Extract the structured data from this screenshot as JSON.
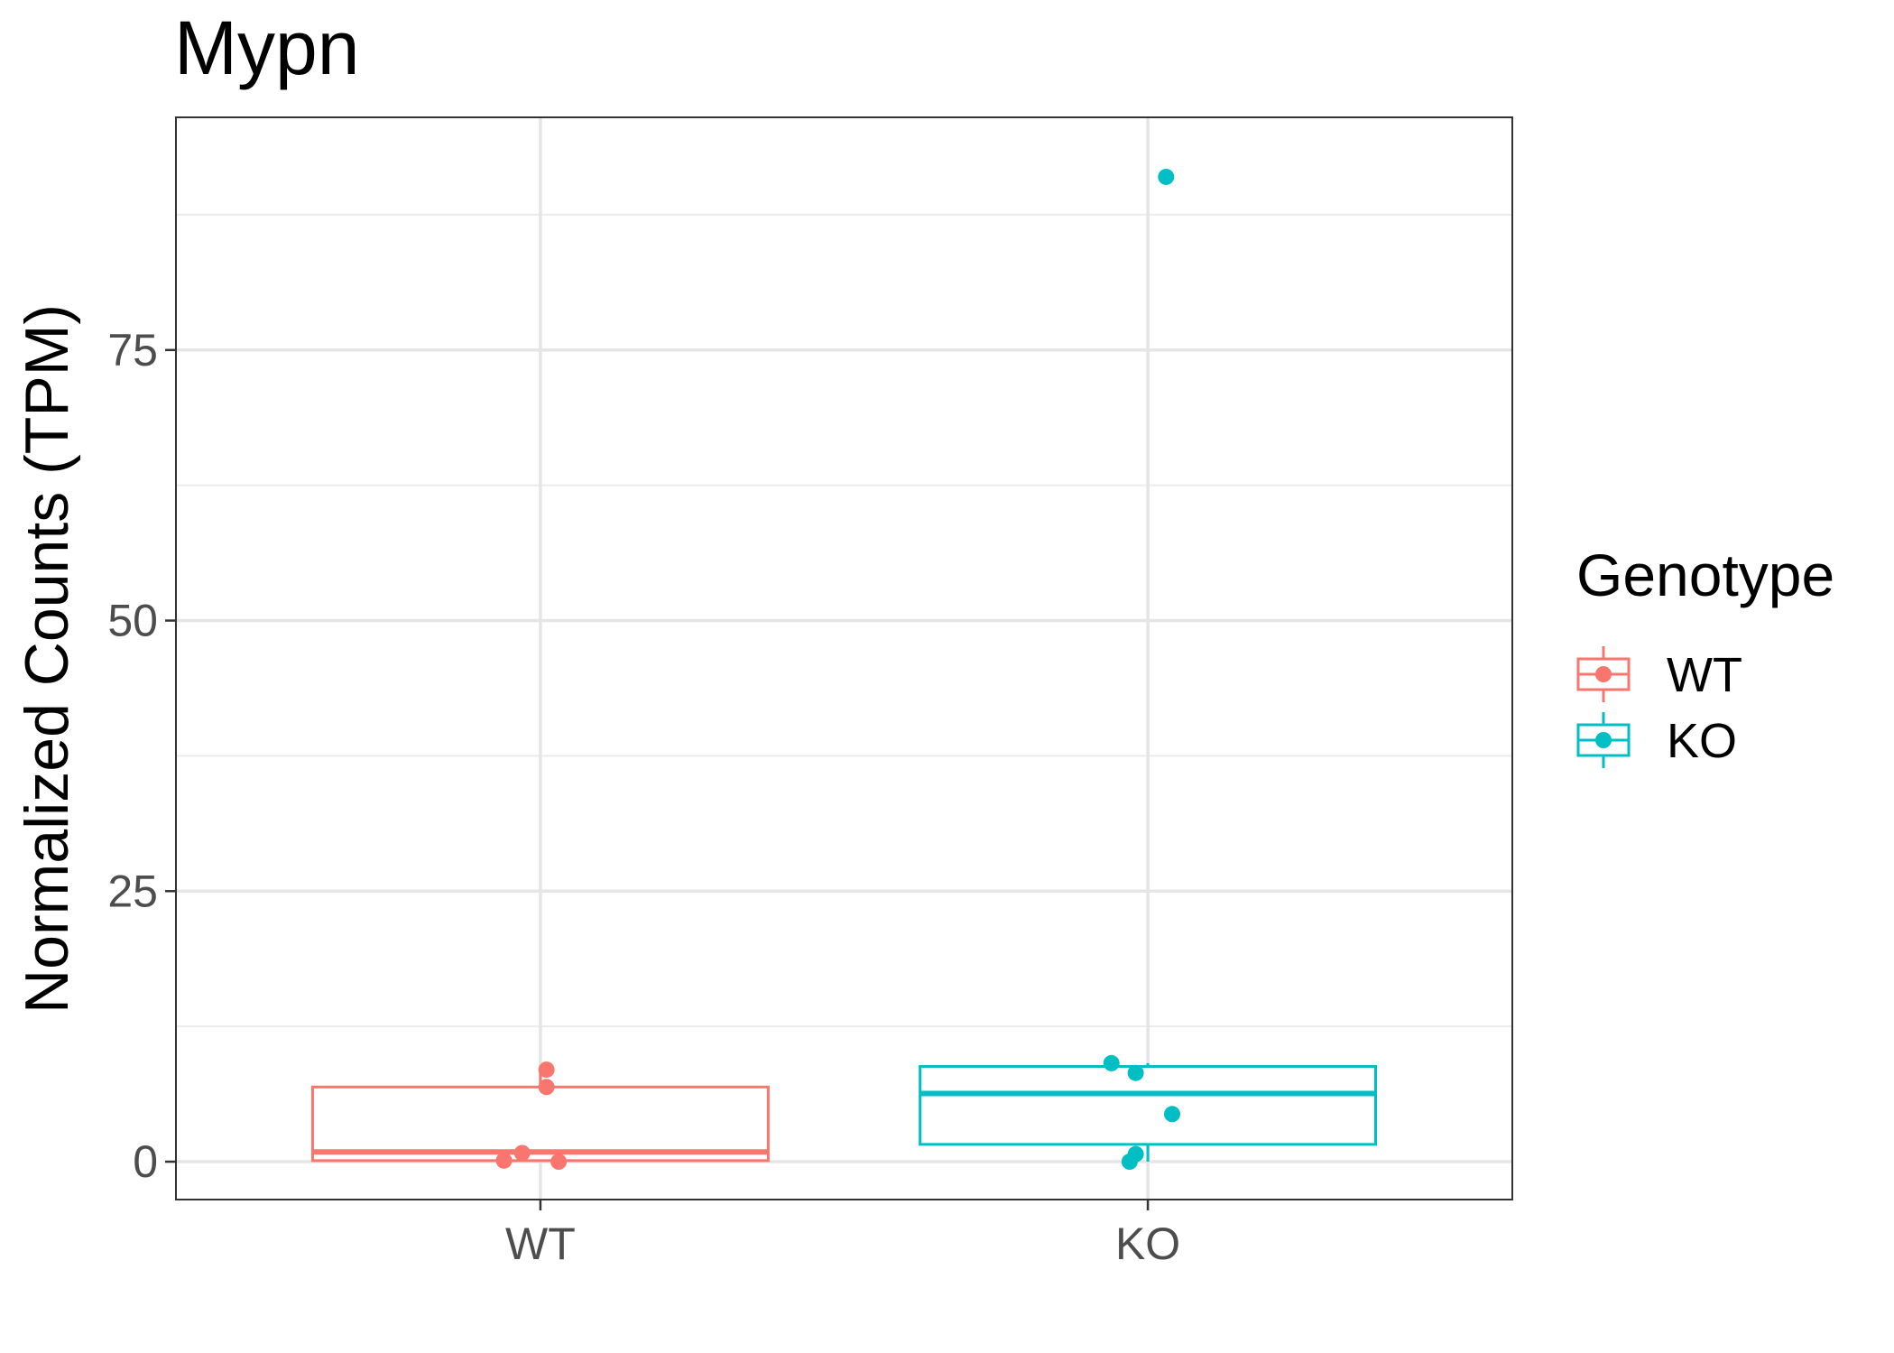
{
  "chart_data": {
    "type": "box",
    "title": "Mypn",
    "xlabel": "",
    "ylabel": "Normalized Counts (TPM)",
    "ylim": [
      -3.5,
      96.5
    ],
    "yticks": [
      0,
      25,
      50,
      75
    ],
    "ytick_labels": [
      "0",
      "25",
      "50",
      "75"
    ],
    "categories": [
      "WT",
      "KO"
    ],
    "grid": true,
    "legend": {
      "title": "Genotype",
      "position": "right",
      "entries": [
        "WT",
        "KO"
      ]
    },
    "colors": {
      "WT": "#F8766D",
      "KO": "#00BFC4"
    },
    "series": [
      {
        "name": "WT",
        "box": {
          "lower_whisker": 0.0,
          "q1": 0.1,
          "median": 0.9,
          "q3": 6.9,
          "upper_whisker": 8.5
        },
        "points": [
          {
            "x": 0.94,
            "y": 0.1
          },
          {
            "x": 0.97,
            "y": 0.8
          },
          {
            "x": 1.01,
            "y": 8.5
          },
          {
            "x": 1.01,
            "y": 6.9
          },
          {
            "x": 1.03,
            "y": 0.0
          }
        ]
      },
      {
        "name": "KO",
        "box": {
          "lower_whisker": 0.0,
          "q1": 1.6,
          "median": 6.3,
          "q3": 8.8,
          "upper_whisker": 9.1
        },
        "points": [
          {
            "x": 1.94,
            "y": 9.1
          },
          {
            "x": 1.98,
            "y": 8.2
          },
          {
            "x": 2.04,
            "y": 4.4
          },
          {
            "x": 1.98,
            "y": 0.7
          },
          {
            "x": 1.97,
            "y": 0.0
          },
          {
            "x": 2.03,
            "y": 91.0
          }
        ]
      }
    ]
  }
}
